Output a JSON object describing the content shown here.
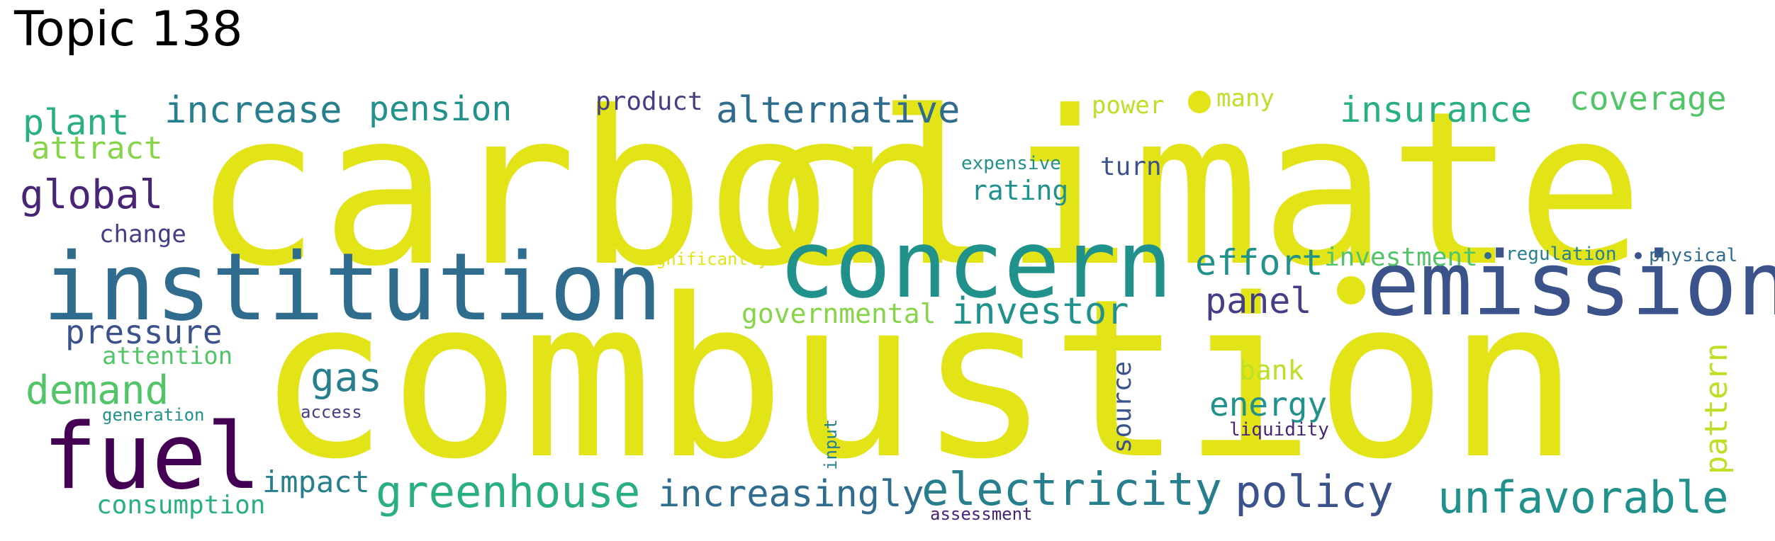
{
  "title": "Topic 138",
  "colors": {
    "yellow": "#e2e418",
    "yellow_green": "#bddf26",
    "light_green": "#86d549",
    "green": "#52c569",
    "teal_green": "#2ab07f",
    "teal": "#21918c",
    "blue_teal": "#277f8e",
    "blue": "#2f6c8e",
    "dark_blue": "#3b528b",
    "indigo": "#433e85",
    "purple": "#482576",
    "dark_purple": "#440154"
  },
  "words": {
    "carbon": "carbon",
    "climate": "climate",
    "combustion": "combustion",
    "institution": "institution",
    "concern": "concern",
    "emission": "emission",
    "fuel": "fuel",
    "greenhouse": "greenhouse",
    "electricity": "electricity",
    "increasingly": "increasingly",
    "policy": "policy",
    "unfavorable": "unfavorable",
    "increase": "increase",
    "pension": "pension",
    "alternative": "alternative",
    "insurance": "insurance",
    "coverage": "coverage",
    "plant": "plant",
    "attract": "attract",
    "global": "global",
    "change": "change",
    "pressure": "pressure",
    "attention": "attention",
    "demand": "demand",
    "generation": "generation",
    "access": "access",
    "gas": "gas",
    "consumption": "consumption",
    "impact": "impact",
    "product": "product",
    "power": "power",
    "many": "many",
    "expensive": "expensive",
    "turn": "turn",
    "rating": "rating",
    "significantly": "significantly",
    "effort": "effort",
    "investment": "investment",
    "regulation": "regulation",
    "physical": "physical",
    "governmental": "governmental",
    "investor": "investor",
    "panel": "panel",
    "bank": "bank",
    "energy": "energy",
    "source": "source",
    "liquidity": "liquidity",
    "input": "input",
    "assessment": "assessment",
    "pattern": "pattern"
  }
}
